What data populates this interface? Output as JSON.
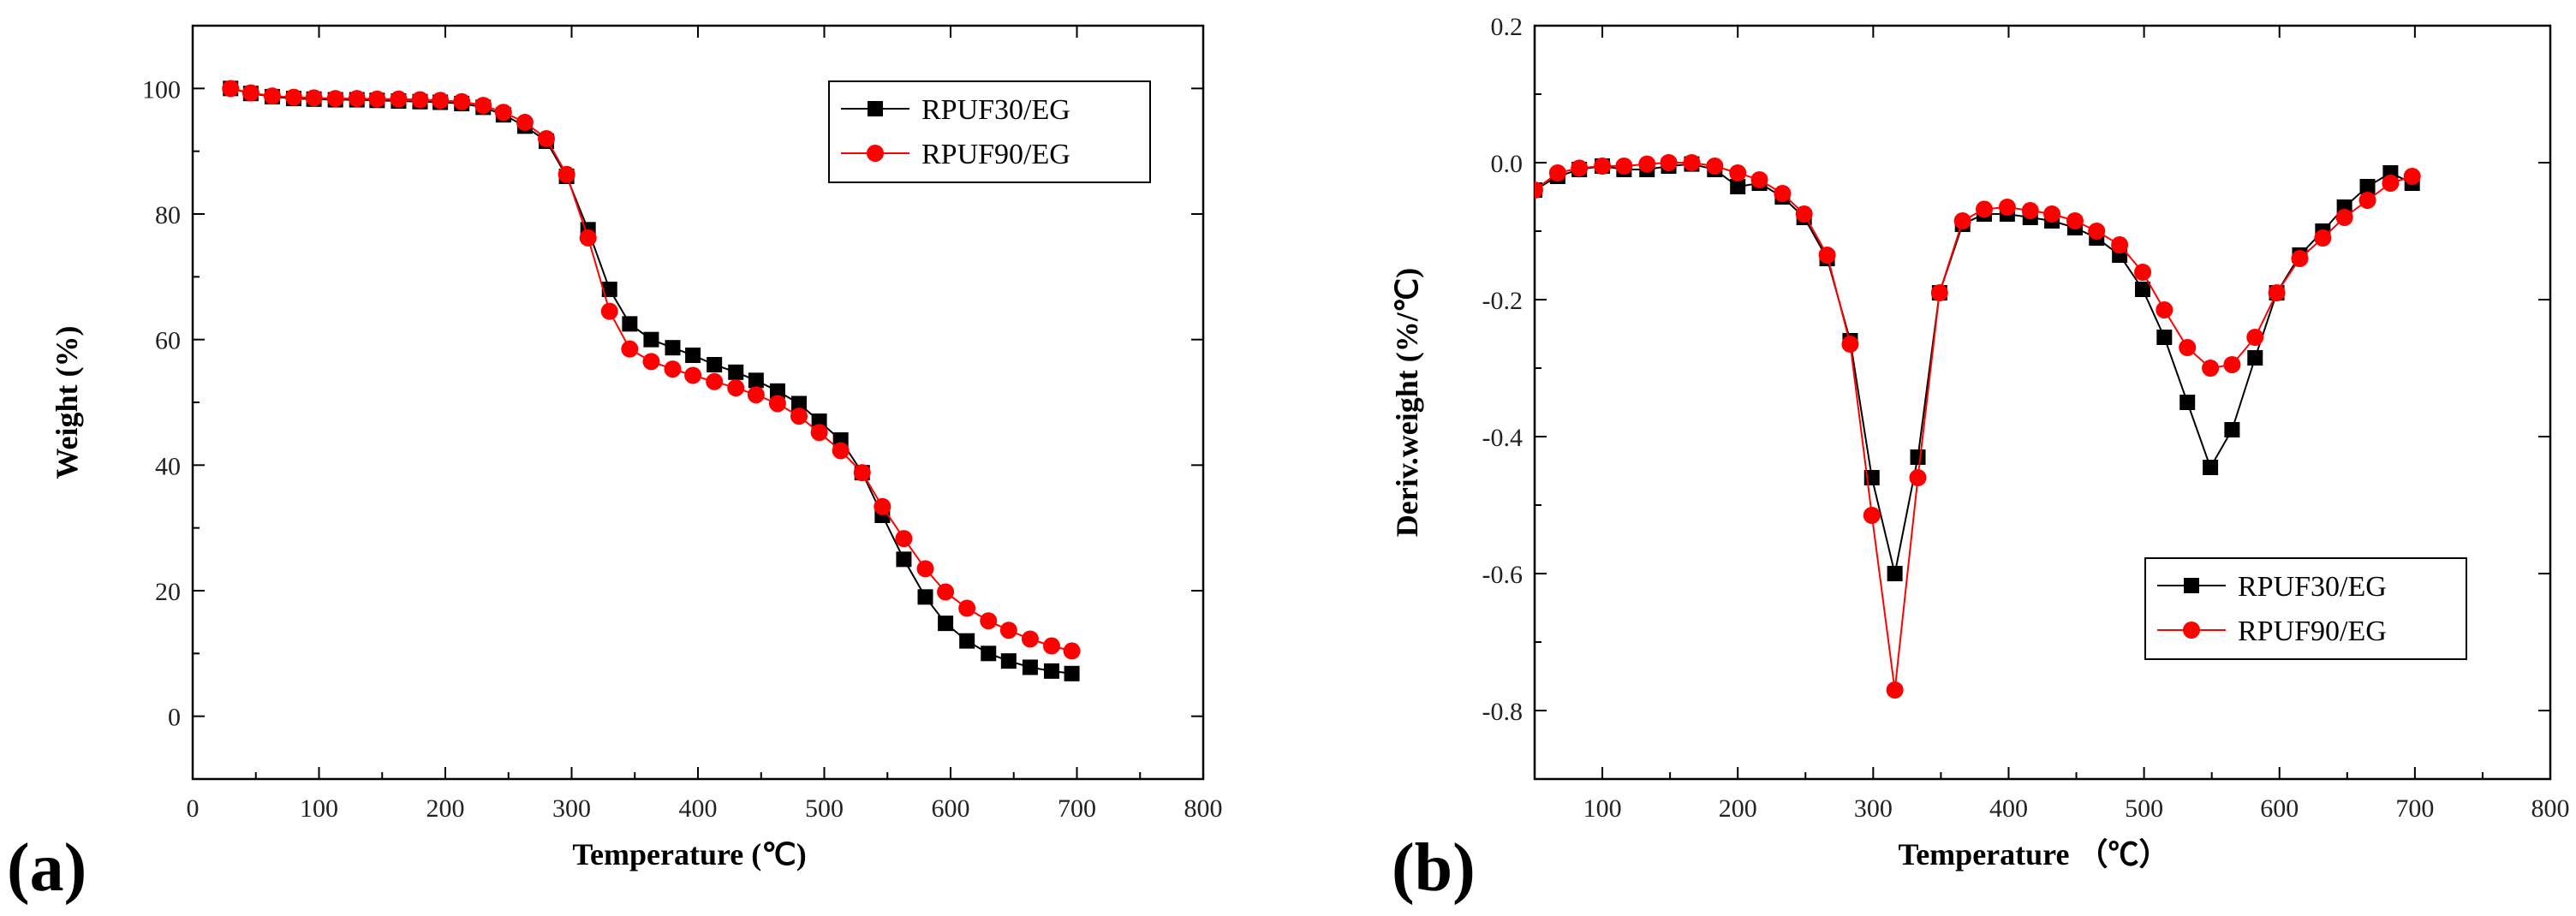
{
  "chart_data": [
    {
      "panel_label": "(a)",
      "type": "line",
      "xlabel": "Temperature (℃)",
      "ylabel": "Weight (%)",
      "xlim": [
        0,
        800
      ],
      "ylim": [
        -10,
        110
      ],
      "xticks": [
        0,
        100,
        200,
        300,
        400,
        500,
        600,
        700,
        800
      ],
      "yticks": [
        0,
        20,
        40,
        60,
        80,
        100
      ],
      "legend": "top-right",
      "series": [
        {
          "name": "RPUF30/EG",
          "color": "#000000",
          "marker": "square",
          "x": [
            30,
            46,
            63,
            80,
            96,
            113,
            130,
            146,
            163,
            180,
            196,
            213,
            230,
            246,
            263,
            280,
            296,
            313,
            330,
            346,
            363,
            380,
            396,
            413,
            430,
            446,
            463,
            480,
            496,
            513,
            530,
            546,
            563,
            580,
            596,
            613,
            630,
            646,
            663,
            680,
            696
          ],
          "y": [
            100,
            99.2,
            98.7,
            98.4,
            98.3,
            98.2,
            98.2,
            98.1,
            98,
            97.9,
            97.8,
            97.6,
            97,
            95.8,
            94,
            91.6,
            86,
            77.5,
            68,
            62.5,
            60,
            58.7,
            57.5,
            56,
            54.8,
            53.5,
            51.8,
            49.8,
            47,
            44,
            38.8,
            32,
            25,
            19,
            14.8,
            12,
            10,
            8.8,
            7.8,
            7.2,
            6.8
          ]
        },
        {
          "name": "RPUF90/EG",
          "color": "#ff0000",
          "marker": "circle",
          "x": [
            30,
            46,
            63,
            80,
            96,
            113,
            130,
            146,
            163,
            180,
            196,
            213,
            230,
            246,
            263,
            280,
            296,
            313,
            330,
            346,
            363,
            380,
            396,
            413,
            430,
            446,
            463,
            480,
            496,
            513,
            530,
            546,
            563,
            580,
            596,
            613,
            630,
            646,
            663,
            680,
            696
          ],
          "y": [
            100,
            99.3,
            98.8,
            98.6,
            98.5,
            98.4,
            98.4,
            98.3,
            98.3,
            98.2,
            98.1,
            97.9,
            97.3,
            96.2,
            94.6,
            92,
            86.3,
            76.2,
            64.5,
            58.5,
            56.5,
            55.3,
            54.3,
            53.3,
            52.3,
            51.2,
            49.8,
            47.8,
            45.2,
            42.3,
            38.8,
            33.4,
            28.3,
            23.5,
            19.8,
            17.2,
            15.2,
            13.7,
            12.3,
            11.2,
            10.4
          ]
        }
      ]
    },
    {
      "panel_label": "(b)",
      "type": "line",
      "xlabel": "Temperature （℃）",
      "ylabel": "Deriv.weight (%/℃)",
      "xlim": [
        50,
        800
      ],
      "ylim": [
        -0.9,
        0.2
      ],
      "xticks": [
        100,
        200,
        300,
        400,
        500,
        600,
        700,
        800
      ],
      "yticks": [
        -0.8,
        -0.6,
        -0.4,
        -0.2,
        0.0,
        0.2
      ],
      "ytick_labels": [
        "-0.8",
        "-0.6",
        "-0.4",
        "-0.2",
        "0.0",
        "0.2"
      ],
      "legend": "lower-right",
      "series": [
        {
          "name": "RPUF30/EG",
          "color": "#000000",
          "marker": "square",
          "x": [
            50,
            67,
            83,
            100,
            116,
            133,
            149,
            166,
            183,
            200,
            216,
            233,
            249,
            266,
            283,
            299,
            316,
            333,
            349,
            366,
            382,
            399,
            416,
            432,
            449,
            465,
            482,
            499,
            515,
            532,
            549,
            565,
            582,
            598,
            615,
            632,
            648,
            665,
            682,
            698
          ],
          "y": [
            -0.04,
            -0.02,
            -0.01,
            -0.005,
            -0.01,
            -0.01,
            -0.005,
            -0.002,
            -0.01,
            -0.035,
            -0.03,
            -0.05,
            -0.08,
            -0.14,
            -0.26,
            -0.46,
            -0.6,
            -0.43,
            -0.19,
            -0.09,
            -0.075,
            -0.075,
            -0.08,
            -0.085,
            -0.095,
            -0.11,
            -0.135,
            -0.185,
            -0.255,
            -0.35,
            -0.445,
            -0.39,
            -0.285,
            -0.19,
            -0.135,
            -0.1,
            -0.065,
            -0.035,
            -0.015,
            -0.03
          ]
        },
        {
          "name": "RPUF90/EG",
          "color": "#ff0000",
          "marker": "circle",
          "x": [
            50,
            67,
            83,
            100,
            116,
            133,
            149,
            166,
            183,
            200,
            216,
            233,
            249,
            266,
            283,
            299,
            316,
            333,
            349,
            366,
            382,
            399,
            416,
            432,
            449,
            465,
            482,
            499,
            515,
            532,
            549,
            565,
            582,
            598,
            615,
            632,
            648,
            665,
            682,
            698
          ],
          "y": [
            -0.04,
            -0.015,
            -0.008,
            -0.005,
            -0.005,
            -0.002,
            0,
            0,
            -0.005,
            -0.015,
            -0.025,
            -0.045,
            -0.075,
            -0.135,
            -0.265,
            -0.515,
            -0.77,
            -0.46,
            -0.19,
            -0.085,
            -0.068,
            -0.065,
            -0.07,
            -0.075,
            -0.085,
            -0.1,
            -0.12,
            -0.16,
            -0.215,
            -0.27,
            -0.3,
            -0.295,
            -0.255,
            -0.19,
            -0.14,
            -0.11,
            -0.08,
            -0.055,
            -0.03,
            -0.02
          ]
        }
      ]
    }
  ]
}
